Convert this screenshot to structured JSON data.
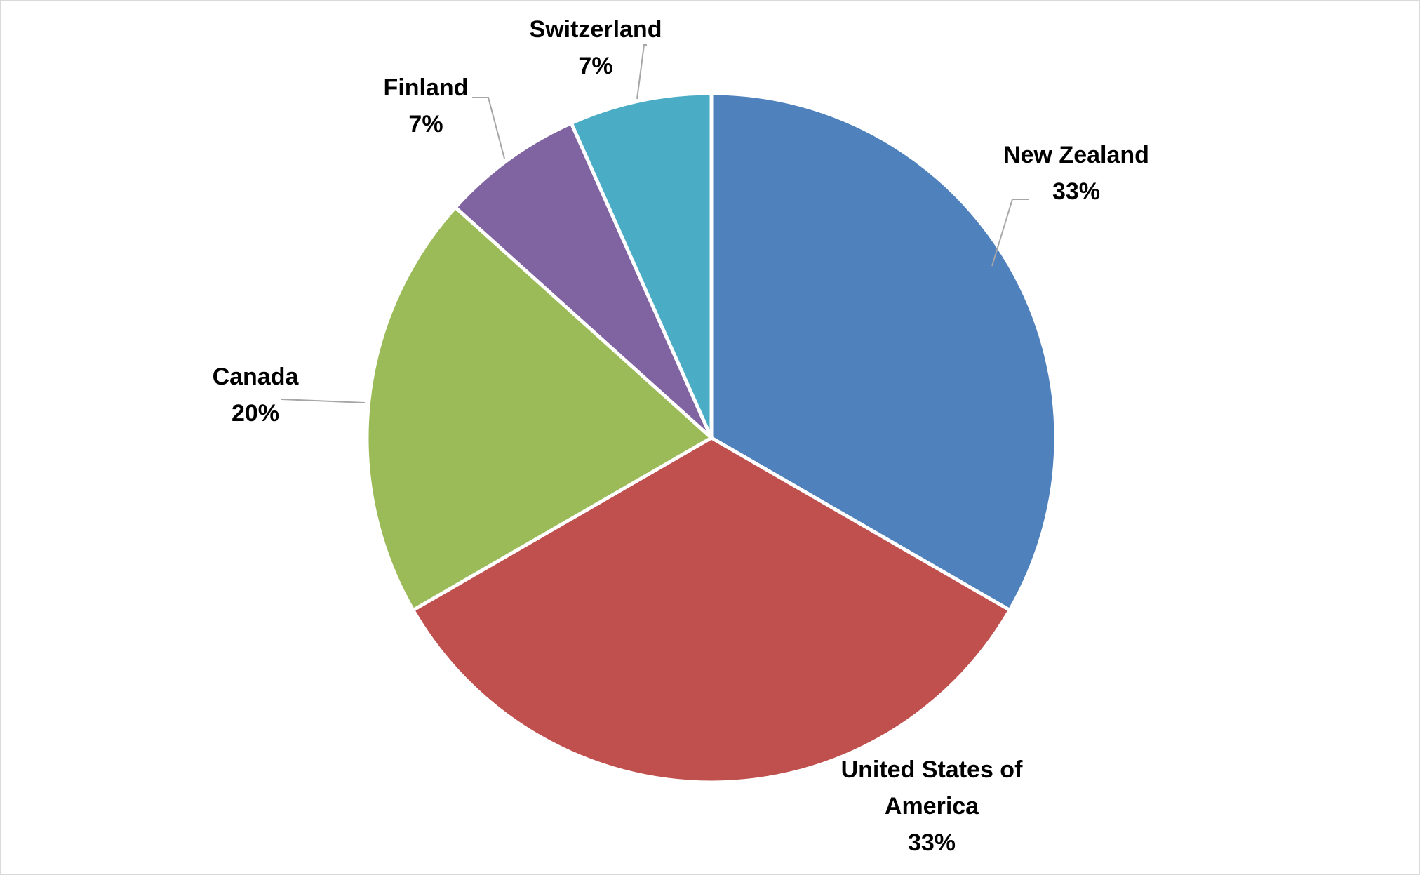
{
  "chart_data": {
    "type": "pie",
    "title": "",
    "slices": [
      {
        "label": "New Zealand",
        "label_lines": [
          "New Zealand"
        ],
        "value": 5,
        "percent_label": "33%",
        "color": "#4F81BD"
      },
      {
        "label": "United States of America",
        "label_lines": [
          "United States of",
          "America"
        ],
        "value": 5,
        "percent_label": "33%",
        "color": "#C0504D"
      },
      {
        "label": "Canada",
        "label_lines": [
          "Canada"
        ],
        "value": 3,
        "percent_label": "20%",
        "color": "#9BBB59"
      },
      {
        "label": "Finland",
        "label_lines": [
          "Finland"
        ],
        "value": 1,
        "percent_label": "7%",
        "color": "#8064A2"
      },
      {
        "label": "Switzerland",
        "label_lines": [
          "Switzerland"
        ],
        "value": 1,
        "percent_label": "7%",
        "color": "#4BACC6"
      }
    ],
    "start_angle": "12 o'clock",
    "direction": "clockwise",
    "legend": "none",
    "data_labels": "category name and percentage, outside end with leader lines"
  }
}
